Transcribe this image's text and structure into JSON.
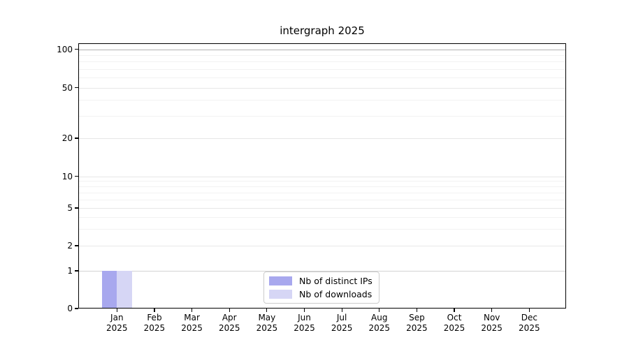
{
  "chart_data": {
    "type": "bar",
    "title": "intergraph 2025",
    "categories": [
      "Jan 2025",
      "Feb 2025",
      "Mar 2025",
      "Apr 2025",
      "May 2025",
      "Jun 2025",
      "Jul 2025",
      "Aug 2025",
      "Sep 2025",
      "Oct 2025",
      "Nov 2025",
      "Dec 2025"
    ],
    "series": [
      {
        "name": "Nb of distinct IPs",
        "color": "#a8a8ee",
        "values": [
          1,
          0,
          0,
          0,
          0,
          0,
          0,
          0,
          0,
          0,
          0,
          0
        ]
      },
      {
        "name": "Nb of downloads",
        "color": "#d6d6f5",
        "values": [
          1,
          0,
          0,
          0,
          0,
          0,
          0,
          0,
          0,
          0,
          0,
          0
        ]
      }
    ],
    "xlabel": "",
    "ylabel": "",
    "yticks": [
      0,
      1,
      2,
      5,
      10,
      20,
      50,
      100
    ],
    "minor_gridline_values": [
      3,
      4,
      6,
      7,
      8,
      9,
      30,
      40,
      60,
      70,
      80,
      90
    ],
    "yscale": "log (0 baseline, ticks 0/1/2/5/10/20/50/100)",
    "ylim": [
      0,
      115
    ],
    "grid": "horizontal major and minor gridlines",
    "legend_position": "bottom-center-inside",
    "colors": {
      "axis": "#000000",
      "grid_top": "#b3b3b3",
      "grid_major": "#e7e7e7",
      "grid_unit_line": "#d4d4d4",
      "grid_minor": "#f2f2f2"
    }
  }
}
